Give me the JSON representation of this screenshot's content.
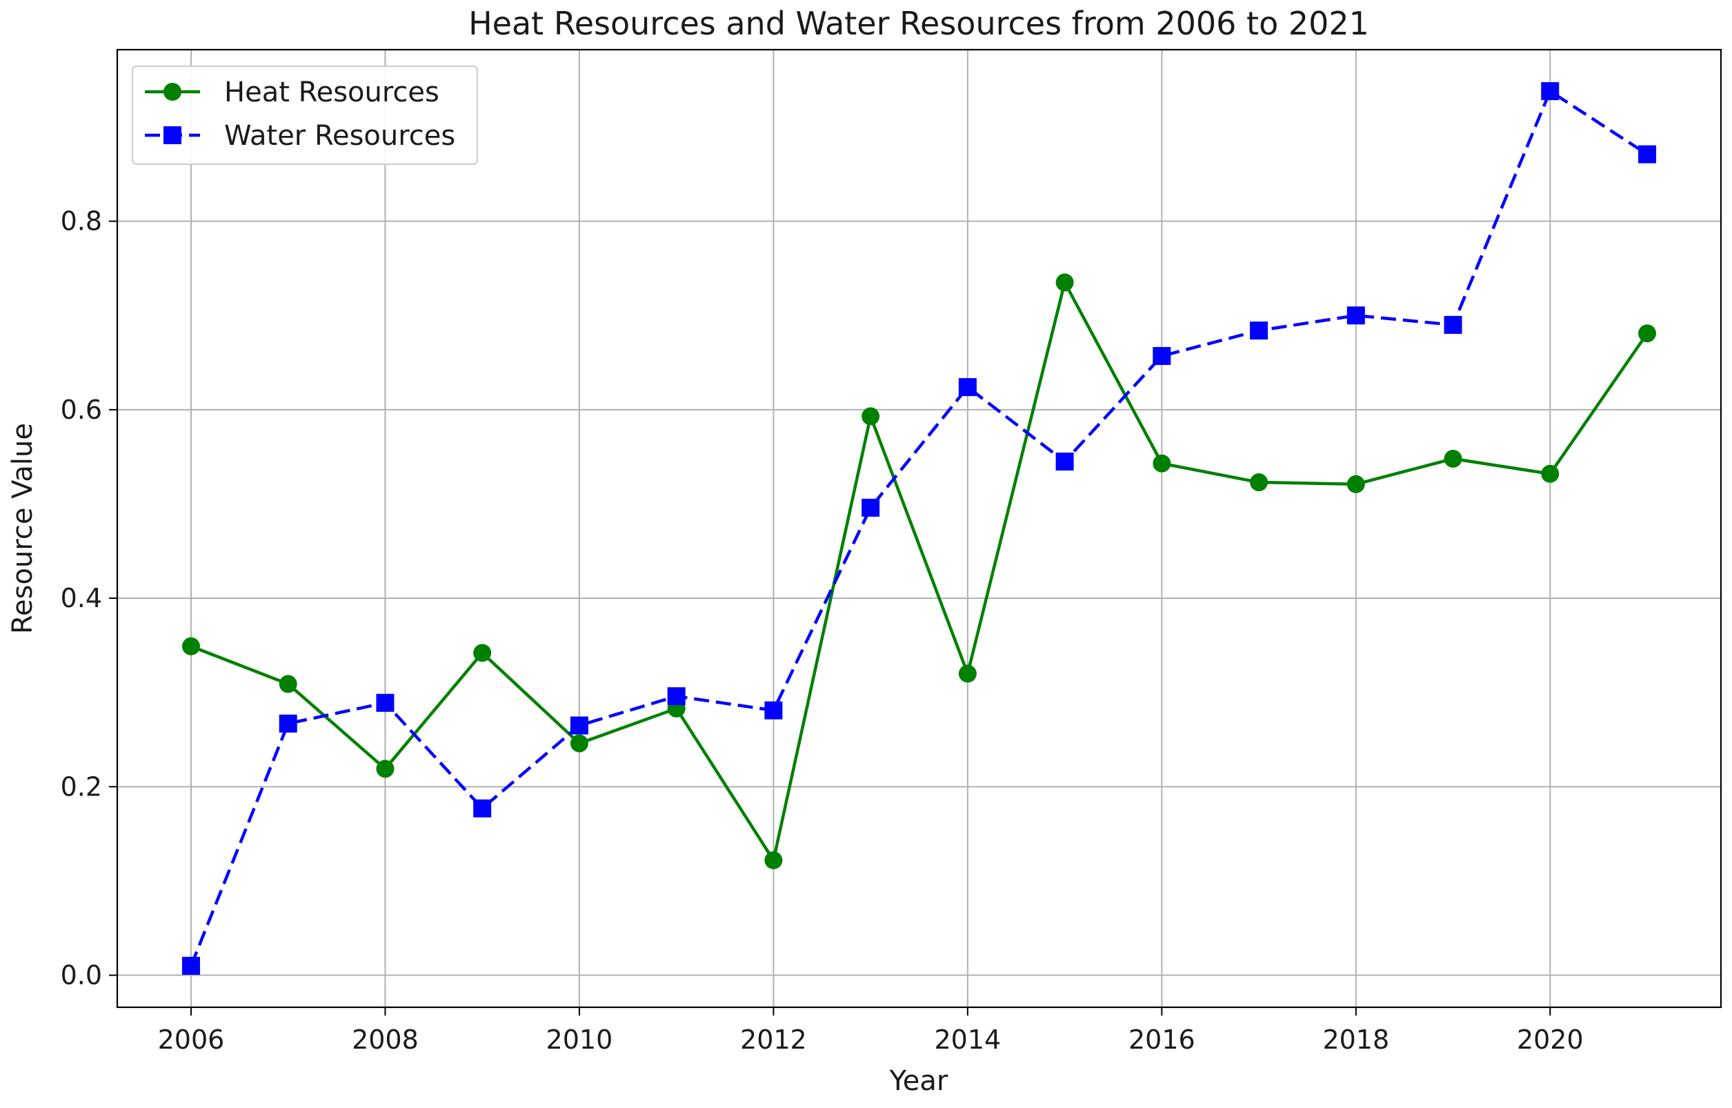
{
  "chart_data": {
    "type": "line",
    "title": "Heat Resources and Water Resources from 2006 to 2021",
    "xlabel": "Year",
    "ylabel": "Resource Value",
    "x": [
      2006,
      2007,
      2008,
      2009,
      2010,
      2011,
      2012,
      2013,
      2014,
      2015,
      2016,
      2017,
      2018,
      2019,
      2020,
      2021
    ],
    "series": [
      {
        "name": "Heat Resources",
        "color": "#008000",
        "marker": "circle",
        "line_style": "solid",
        "values": [
          0.349,
          0.309,
          0.219,
          0.342,
          0.246,
          0.283,
          0.122,
          0.593,
          0.32,
          0.735,
          0.543,
          0.523,
          0.521,
          0.548,
          0.532,
          0.681
        ]
      },
      {
        "name": "Water Resources",
        "color": "#0000ff",
        "marker": "square",
        "line_style": "dashed",
        "values": [
          0.01,
          0.267,
          0.289,
          0.177,
          0.265,
          0.296,
          0.281,
          0.496,
          0.624,
          0.545,
          0.657,
          0.684,
          0.7,
          0.69,
          0.938,
          0.871
        ]
      }
    ],
    "xticks": [
      2006,
      2008,
      2010,
      2012,
      2014,
      2016,
      2018,
      2020
    ],
    "xtick_labels": [
      "2006",
      "2008",
      "2010",
      "2012",
      "2014",
      "2016",
      "2018",
      "2020"
    ],
    "yticks": [
      0.0,
      0.2,
      0.4,
      0.6,
      0.8
    ],
    "ytick_labels": [
      "0.0",
      "0.2",
      "0.4",
      "0.6",
      "0.8"
    ],
    "xlim": [
      2005.24,
      2021.76
    ],
    "ylim": [
      -0.034,
      0.982
    ],
    "grid": true,
    "legend_position": "upper left"
  }
}
